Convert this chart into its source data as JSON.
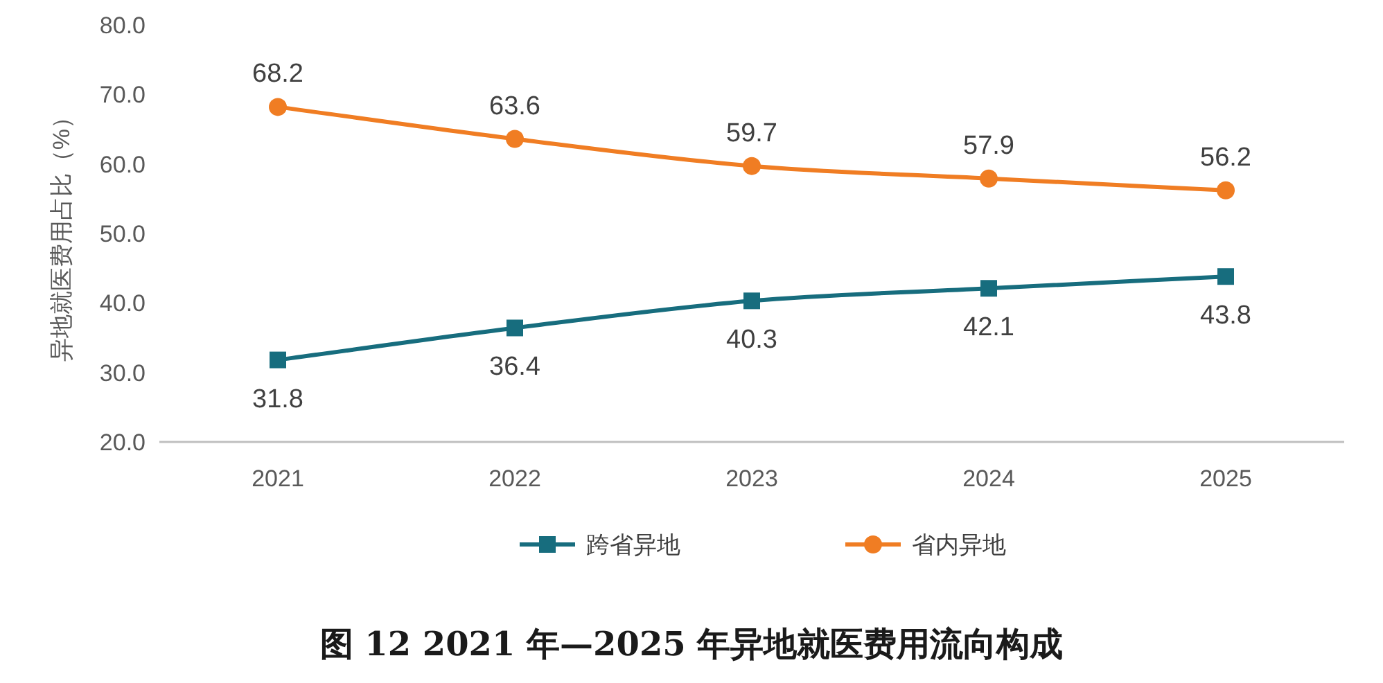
{
  "chart_data": {
    "type": "line",
    "title": "图 12   2021 年—2025 年异地就医费用流向构成",
    "ylabel": "异地就医费用占比（%）",
    "categories": [
      "2021",
      "2022",
      "2023",
      "2024",
      "2025"
    ],
    "series": [
      {
        "name": "跨省异地",
        "color": "#176d7e",
        "marker": "square",
        "values": [
          31.8,
          36.4,
          40.3,
          42.1,
          43.8
        ]
      },
      {
        "name": "省内异地",
        "color": "#f07d23",
        "marker": "circle",
        "values": [
          68.2,
          63.6,
          59.7,
          57.9,
          56.2
        ]
      }
    ],
    "ylim": [
      20,
      80
    ],
    "yticks": [
      {
        "value": 20,
        "label": "20.0"
      },
      {
        "value": 30,
        "label": "30.0"
      },
      {
        "value": 40,
        "label": "40.0"
      },
      {
        "value": 50,
        "label": "50.0"
      },
      {
        "value": 60,
        "label": "60.0"
      },
      {
        "value": 70,
        "label": "70.0"
      },
      {
        "value": 80,
        "label": "80.0"
      }
    ],
    "data_labels": true,
    "legend": "bottom"
  }
}
